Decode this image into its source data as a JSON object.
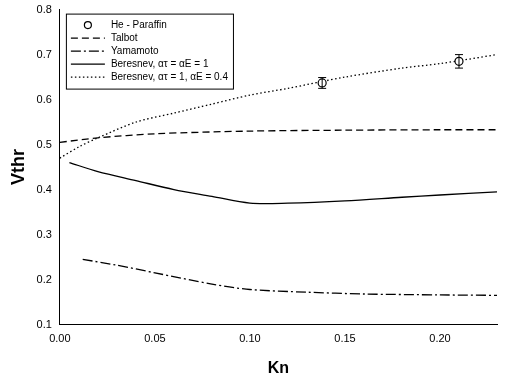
{
  "chart_data": {
    "type": "line",
    "x_label": "Kn",
    "y_label": "Vthr",
    "xlim": [
      0,
      0.23
    ],
    "ylim": [
      0.1,
      0.8
    ],
    "xticks": [
      {
        "value": 0,
        "label": "0.00"
      },
      {
        "value": 0.05,
        "label": "0.05"
      },
      {
        "value": 0.1,
        "label": "0.10"
      },
      {
        "value": 0.15,
        "label": "0.15"
      },
      {
        "value": 0.2,
        "label": "0.20"
      }
    ],
    "yticks": [
      0.1,
      0.2,
      0.3,
      0.4,
      0.5,
      0.6,
      0.7,
      0.8
    ],
    "grid": false,
    "legend": "upper left",
    "series": [
      {
        "name": "He - Paraffin",
        "type": "scatter",
        "marker": "circle",
        "color": "#000000",
        "x": [
          0.138,
          0.21
        ],
        "values": [
          0.637,
          0.685
        ],
        "errors": [
          0.012,
          0.015
        ]
      },
      {
        "name": "Talbot",
        "type": "line",
        "line_style": "dashed",
        "color": "#000000",
        "x": [
          0.0,
          0.02,
          0.05,
          0.1,
          0.15,
          0.2,
          0.23
        ],
        "values": [
          0.505,
          0.515,
          0.524,
          0.53,
          0.532,
          0.533,
          0.533
        ]
      },
      {
        "name": "Yamamoto",
        "type": "line",
        "line_style": "dashdot",
        "color": "#000000",
        "x": [
          0.012,
          0.03,
          0.05,
          0.08,
          0.1,
          0.13,
          0.16,
          0.2,
          0.23
        ],
        "values": [
          0.245,
          0.232,
          0.215,
          0.19,
          0.178,
          0.172,
          0.168,
          0.166,
          0.165
        ]
      },
      {
        "name": "Beresnev, ατ = αE = 1",
        "type": "line",
        "line_style": "solid",
        "color": "#000000",
        "x": [
          0.005,
          0.02,
          0.04,
          0.06,
          0.08,
          0.1,
          0.12,
          0.15,
          0.18,
          0.2,
          0.23
        ],
        "values": [
          0.46,
          0.44,
          0.42,
          0.4,
          0.385,
          0.37,
          0.37,
          0.375,
          0.383,
          0.388,
          0.395
        ]
      },
      {
        "name": "Beresnev, ατ = 1, αE = 0.4",
        "type": "line",
        "line_style": "dotted",
        "color": "#000000",
        "x": [
          0,
          0.01,
          0.02,
          0.04,
          0.06,
          0.08,
          0.1,
          0.12,
          0.15,
          0.18,
          0.2,
          0.23
        ],
        "values": [
          0.47,
          0.495,
          0.515,
          0.55,
          0.57,
          0.59,
          0.61,
          0.625,
          0.65,
          0.67,
          0.68,
          0.7
        ]
      }
    ]
  }
}
